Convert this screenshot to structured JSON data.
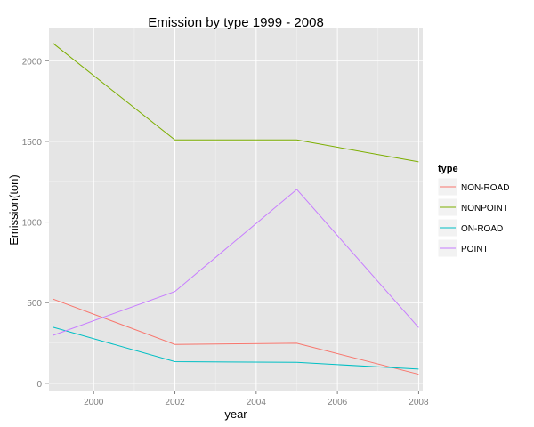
{
  "chart_data": {
    "type": "line",
    "title": "Emission by type 1999 - 2008",
    "xlabel": "year",
    "ylabel": "Emission(ton)",
    "x": [
      1999,
      2002,
      2005,
      2008
    ],
    "xlim": [
      1998.9,
      2008.1
    ],
    "ylim": [
      -45,
      2200
    ],
    "xticks": [
      2000,
      2002,
      2004,
      2006,
      2008
    ],
    "yticks": [
      0,
      500,
      1000,
      1500,
      2000
    ],
    "grid": true,
    "legend": {
      "title": "type",
      "position": "right"
    },
    "series": [
      {
        "name": "NON-ROAD",
        "color": "#F8766D",
        "values": [
          522,
          241,
          248,
          56
        ]
      },
      {
        "name": "NONPOINT",
        "color": "#7CAE00",
        "values": [
          2108,
          1509,
          1509,
          1373
        ]
      },
      {
        "name": "ON-ROAD",
        "color": "#00BFC4",
        "values": [
          347,
          134,
          130,
          88
        ]
      },
      {
        "name": "POINT",
        "color": "#C77CFF",
        "values": [
          297,
          569,
          1202,
          345
        ]
      }
    ]
  }
}
